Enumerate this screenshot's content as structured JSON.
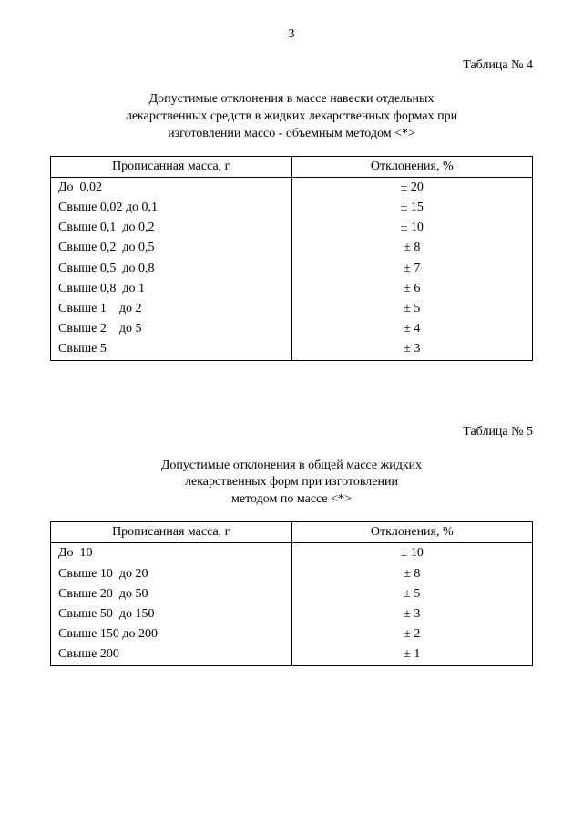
{
  "page_number": "3",
  "section1": {
    "table_label": "Таблица № 4",
    "caption_lines": [
      "Допустимые отклонения в массе навески отдельных",
      "лекарственных средств в жидких лекарственных формах при",
      "изготовлении массо - объемным методом <*>"
    ],
    "col1_header": "Прописанная масса, г",
    "col2_header": "Отклонения, %",
    "rows": [
      {
        "mass": "До  0,02",
        "dev": "± 20"
      },
      {
        "mass": "Свыше 0,02 до 0,1",
        "dev": "± 15"
      },
      {
        "mass": "Свыше 0,1  до 0,2",
        "dev": "± 10"
      },
      {
        "mass": "Свыше 0,2  до 0,5",
        "dev": "± 8"
      },
      {
        "mass": "Свыше 0,5  до 0,8",
        "dev": "± 7"
      },
      {
        "mass": "Свыше 0,8  до 1",
        "dev": "± 6"
      },
      {
        "mass": "Свыше 1    до 2",
        "dev": "± 5"
      },
      {
        "mass": "Свыше 2    до 5",
        "dev": "± 4"
      },
      {
        "mass": "Свыше 5",
        "dev": "± 3"
      }
    ]
  },
  "section2": {
    "table_label": "Таблица № 5",
    "caption_lines": [
      "Допустимые отклонения в общей массе жидких",
      "лекарственных форм при изготовлении",
      "методом по массе <*>"
    ],
    "col1_header": "Прописанная масса, г",
    "col2_header": "Отклонения, %",
    "rows": [
      {
        "mass": "До  10",
        "dev": "± 10"
      },
      {
        "mass": "Свыше 10  до 20",
        "dev": "± 8"
      },
      {
        "mass": "Свыше 20  до 50",
        "dev": "± 5"
      },
      {
        "mass": "Свыше 50  до 150",
        "dev": "± 3"
      },
      {
        "mass": "Свыше 150 до 200",
        "dev": "± 2"
      },
      {
        "mass": "Свыше 200",
        "dev": "± 1"
      }
    ]
  },
  "layout": {
    "col1_width_pct": 50,
    "col2_width_pct": 50,
    "font_size_pt": 14,
    "border_color": "#000000",
    "background_color": "#ffffff",
    "text_color": "#000000"
  }
}
